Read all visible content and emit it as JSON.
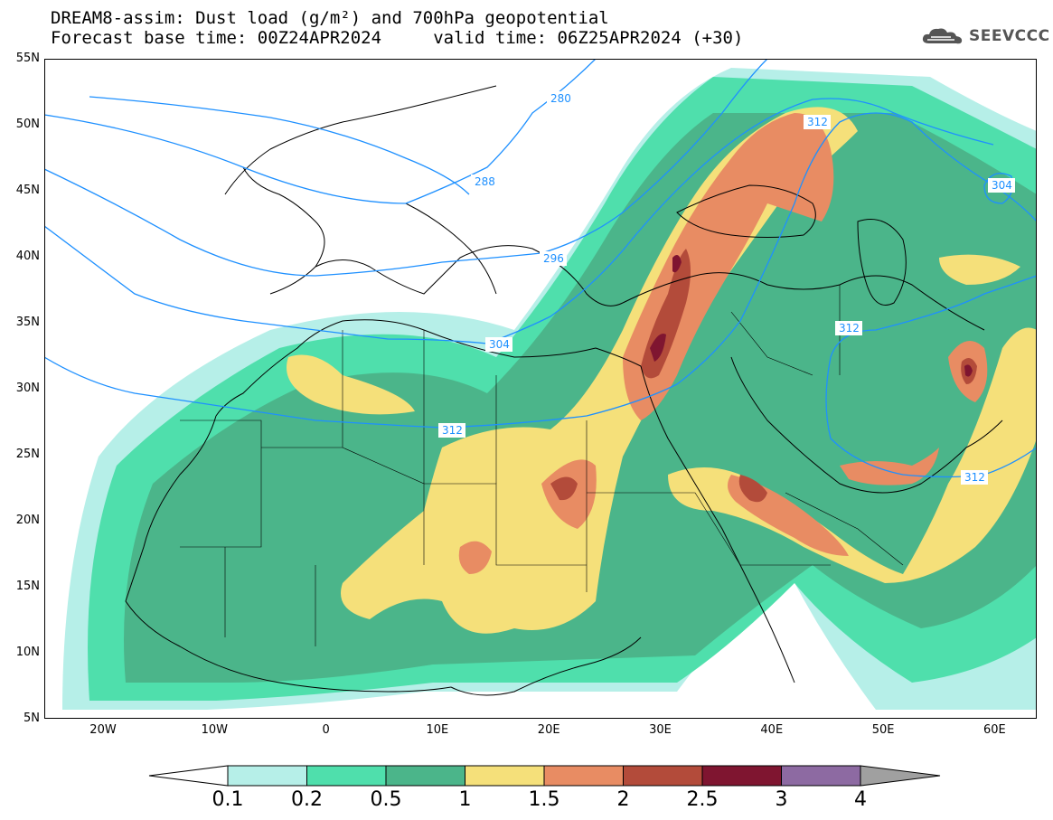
{
  "header": {
    "title_line1": "DREAM8-assim: Dust load (g/m²) and 700hPa geopotential",
    "title_line2": "Forecast base time: 00Z24APR2024     valid time: 06Z25APR2024 (+30)",
    "logo_text": "SEEVCCC"
  },
  "axes": {
    "lat_labels": [
      "55N",
      "50N",
      "45N",
      "40N",
      "35N",
      "30N",
      "25N",
      "20N",
      "15N",
      "10N",
      "5N"
    ],
    "lon_labels": [
      "20W",
      "10W",
      "0",
      "10E",
      "20E",
      "30E",
      "40E",
      "50E",
      "60E"
    ]
  },
  "contours": {
    "labels": [
      "280",
      "288",
      "296",
      "304",
      "312",
      "312",
      "312",
      "304"
    ],
    "color": "#1e90ff"
  },
  "colorbar": {
    "ticks": [
      "0.1",
      "0.2",
      "0.5",
      "1",
      "1.5",
      "2",
      "2.5",
      "3",
      "4"
    ],
    "colors": [
      "#b6efe8",
      "#4fdfac",
      "#4bb58a",
      "#f5e07a",
      "#e88c63",
      "#b34b3a",
      "#7f1530",
      "#8d6aa2"
    ],
    "under_color": "#ffffff",
    "over_color": "#a0a0a0"
  }
}
